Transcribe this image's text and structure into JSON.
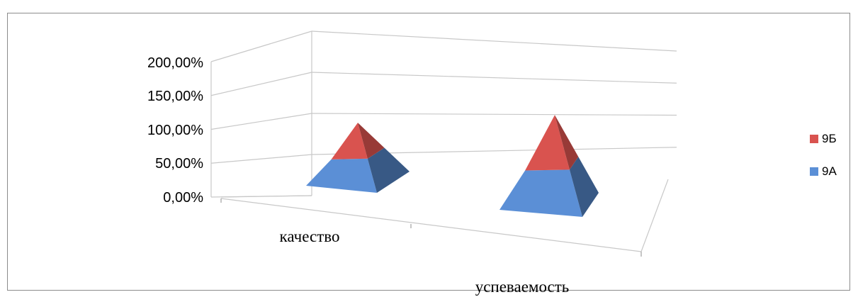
{
  "chart_data": {
    "type": "bar",
    "shape": "pyramid-3d",
    "stacked": true,
    "categories": [
      "качество",
      "успеваемость"
    ],
    "series": [
      {
        "name": "9А",
        "values": [
          0.57,
          0.82
        ],
        "color": "#5b8fd6"
      },
      {
        "name": "9Б",
        "values": [
          0.6,
          0.95
        ],
        "color": "#d9534f"
      }
    ],
    "y_ticks": [
      "0,00%",
      "50,00%",
      "100,00%",
      "150,00%",
      "200,00%"
    ],
    "ylim": [
      0,
      2
    ],
    "legend_position": "right",
    "legend_order": [
      "9Б",
      "9А"
    ],
    "grid": true
  }
}
